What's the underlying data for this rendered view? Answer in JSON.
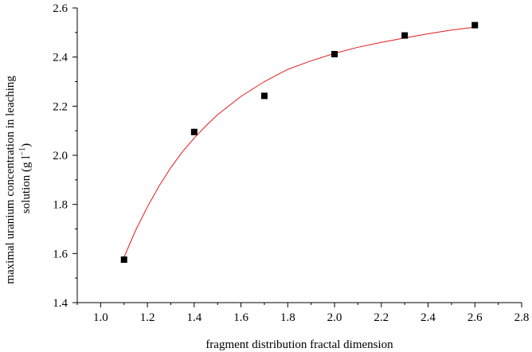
{
  "chart_data": {
    "type": "scatter",
    "title": "",
    "xlabel": "fragment distribution fractal dimension",
    "ylabel_line1": "maximal uranium concentration in leaching",
    "ylabel_line2_prefix": "solution (g l",
    "ylabel_line2_sup": "−1",
    "ylabel_line2_suffix": ")",
    "xlim": [
      0.9,
      2.8
    ],
    "ylim": [
      1.4,
      2.6
    ],
    "x_ticks": [
      1.0,
      1.2,
      1.4,
      1.6,
      1.8,
      2.0,
      2.2,
      2.4,
      2.6,
      2.8
    ],
    "x_tick_labels": [
      "1.0",
      "1.2",
      "1.4",
      "1.6",
      "1.8",
      "2.0",
      "2.2",
      "2.4",
      "2.6",
      "2.8"
    ],
    "y_ticks": [
      1.4,
      1.6,
      1.8,
      2.0,
      2.2,
      2.4,
      2.6
    ],
    "y_tick_labels": [
      "1.4",
      "1.6",
      "1.8",
      "2.0",
      "2.2",
      "2.4",
      "2.6"
    ],
    "points": [
      {
        "x": 1.1,
        "y": 1.575
      },
      {
        "x": 1.4,
        "y": 2.095
      },
      {
        "x": 1.7,
        "y": 2.242
      },
      {
        "x": 2.0,
        "y": 2.412
      },
      {
        "x": 2.3,
        "y": 2.488
      },
      {
        "x": 2.6,
        "y": 2.53
      }
    ],
    "fit_curve": {
      "x": [
        1.1,
        1.15,
        1.2,
        1.25,
        1.3,
        1.35,
        1.4,
        1.45,
        1.5,
        1.6,
        1.7,
        1.8,
        1.9,
        2.0,
        2.1,
        2.2,
        2.3,
        2.4,
        2.5,
        2.6
      ],
      "y": [
        1.585,
        1.695,
        1.79,
        1.875,
        1.95,
        2.015,
        2.07,
        2.12,
        2.165,
        2.24,
        2.3,
        2.35,
        2.385,
        2.415,
        2.44,
        2.46,
        2.478,
        2.495,
        2.51,
        2.522
      ]
    },
    "marker_color": "#000000",
    "fit_color": "#e31a1c",
    "grid": false,
    "legend": "none"
  }
}
